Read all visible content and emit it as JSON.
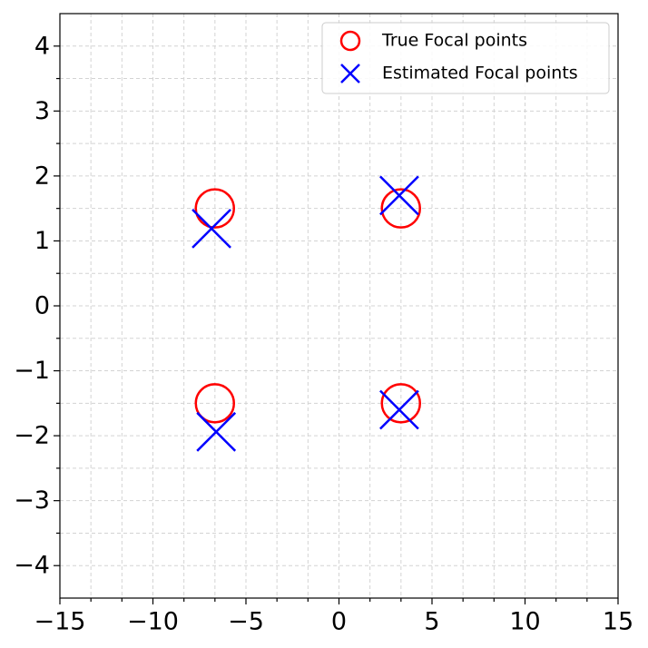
{
  "chart_data": {
    "type": "scatter",
    "xlim": [
      -15,
      15
    ],
    "ylim": [
      -4.5,
      4.5
    ],
    "xticks": [
      {
        "value": -15,
        "label": "−15"
      },
      {
        "value": -10,
        "label": "−10"
      },
      {
        "value": -5,
        "label": "−5"
      },
      0,
      5,
      10,
      15
    ],
    "yticks": [
      {
        "value": -4,
        "label": "−4"
      },
      {
        "value": -3,
        "label": "−3"
      },
      {
        "value": -2,
        "label": "−2"
      },
      {
        "value": -1,
        "label": "−1"
      },
      0,
      1,
      2,
      3,
      4
    ],
    "xminorticks": [
      -13.333,
      -11.667,
      -8.333,
      -6.667,
      -3.333,
      -1.667,
      1.667,
      3.333,
      6.667,
      8.333,
      11.667,
      13.333
    ],
    "yminorticks": [
      -3.5,
      -2.5,
      -1.5,
      -0.5,
      0.5,
      1.5,
      2.5,
      3.5
    ],
    "grid": true,
    "legend": "upper right",
    "series": [
      {
        "name": "True Focal points",
        "color": "#ff0000",
        "marker": "circle",
        "x": [
          -6.67,
          3.33,
          -6.67,
          3.33
        ],
        "values": [
          1.5,
          1.5,
          -1.5,
          -1.5
        ]
      },
      {
        "name": "Estimated Focal points",
        "color": "#0000ff",
        "marker": "x",
        "x": [
          -6.85,
          3.24,
          -6.6,
          3.24
        ],
        "values": [
          1.19,
          1.7,
          -1.94,
          -1.6
        ]
      }
    ]
  }
}
